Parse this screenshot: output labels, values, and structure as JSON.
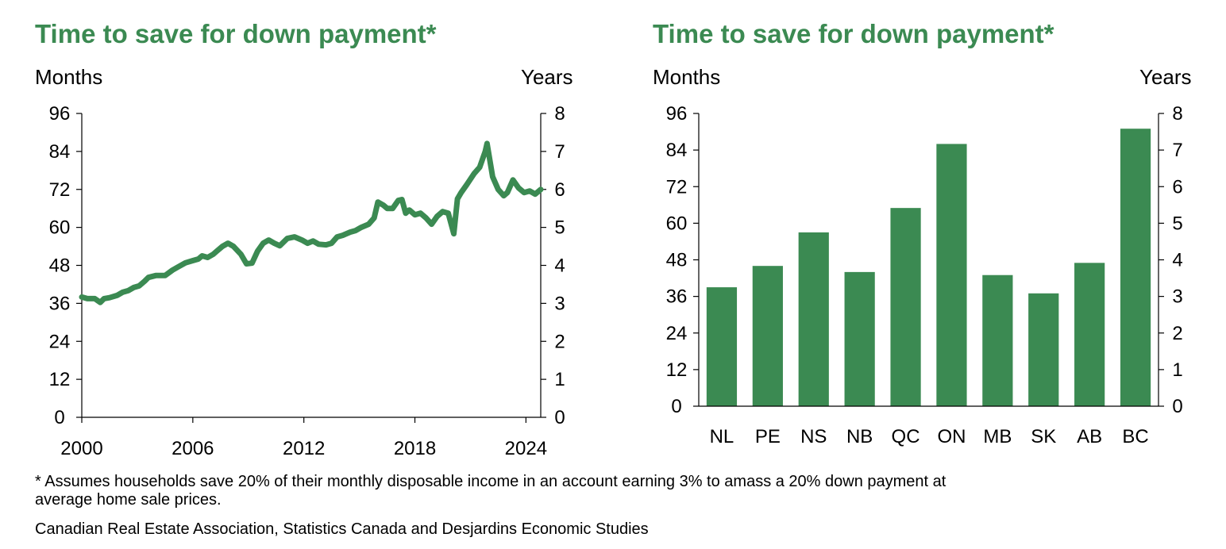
{
  "footnote": "* Assumes households save 20% of their monthly disposable income in an account earning 3% to amass a 20% down payment at",
  "footnote_line2": "average home sale prices.",
  "source": "Canadian Real Estate Association, Statistics Canada and Desjardins Economic Studies",
  "colors": {
    "title": "#3b8a52",
    "series": "#3b8a52",
    "bar": "#3b8a52",
    "axis": "#000000"
  },
  "chart_data": [
    {
      "type": "line",
      "title": "Time to save for down payment*",
      "ylabel": "Months",
      "y2label": "Years",
      "ylim": [
        0,
        96
      ],
      "y2lim": [
        0,
        8
      ],
      "yticks": [
        "96",
        "84",
        "72",
        "60",
        "48",
        "36",
        "24",
        "12",
        "0"
      ],
      "y2ticks": [
        "8",
        "7",
        "6",
        "5",
        "4",
        "3",
        "2",
        "1",
        "0"
      ],
      "xlim": [
        2000,
        2024.8
      ],
      "xticks": [
        "2000",
        "2006",
        "2012",
        "2018",
        "2024"
      ],
      "series": [
        {
          "x": [
            2000.0,
            2000.3,
            2000.7,
            2001.0,
            2001.2,
            2001.5,
            2001.9,
            2002.2,
            2002.5,
            2002.8,
            2003.1,
            2003.4,
            2003.6,
            2004.0,
            2004.5,
            2004.9,
            2005.2,
            2005.6,
            2006.0,
            2006.3,
            2006.5,
            2006.8,
            2007.1,
            2007.3,
            2007.6,
            2007.9,
            2008.2,
            2008.6,
            2008.9,
            2009.2,
            2009.5,
            2009.8,
            2010.1,
            2010.4,
            2010.7,
            2011.1,
            2011.5,
            2011.9,
            2012.2,
            2012.5,
            2012.8,
            2013.2,
            2013.5,
            2013.8,
            2014.1,
            2014.5,
            2014.8,
            2015.1,
            2015.5,
            2015.8,
            2016.0,
            2016.3,
            2016.5,
            2016.8,
            2017.1,
            2017.3,
            2017.5,
            2017.7,
            2018.0,
            2018.3,
            2018.6,
            2018.9,
            2019.2,
            2019.5,
            2019.8,
            2020.1,
            2020.3,
            2020.5,
            2020.8,
            2021.2,
            2021.5,
            2021.8,
            2021.9,
            2022.2,
            2022.5,
            2022.8,
            2023.0,
            2023.3,
            2023.6,
            2023.9,
            2024.2,
            2024.5,
            2024.8
          ],
          "values": [
            38.0,
            37.5,
            37.5,
            36.3,
            37.5,
            37.8,
            38.5,
            39.5,
            40.0,
            41.0,
            41.5,
            43.0,
            44.2,
            44.8,
            44.8,
            46.5,
            47.5,
            48.8,
            49.5,
            50.0,
            51.0,
            50.5,
            51.5,
            52.5,
            54.0,
            55.0,
            54.0,
            51.5,
            48.5,
            48.7,
            52.5,
            55.0,
            56.0,
            55.0,
            54.2,
            56.5,
            57.0,
            56.0,
            55.0,
            55.7,
            54.7,
            54.5,
            55.0,
            57.0,
            57.5,
            58.5,
            59.0,
            60.0,
            61.0,
            63.0,
            68.0,
            67.0,
            66.0,
            66.0,
            68.5,
            68.8,
            64.5,
            65.5,
            64.0,
            64.5,
            63.0,
            61.0,
            63.5,
            65.0,
            64.5,
            58.0,
            69.0,
            71.0,
            73.5,
            77.0,
            79.0,
            84.0,
            86.5,
            76.0,
            72.0,
            70.0,
            71.0,
            75.0,
            72.5,
            71.0,
            71.5,
            70.5,
            72.0
          ]
        }
      ]
    },
    {
      "type": "bar",
      "title": "Time to save for down payment*",
      "ylabel": "Months",
      "y2label": "Years",
      "ylim": [
        0,
        96
      ],
      "y2lim": [
        0,
        8
      ],
      "yticks": [
        "96",
        "84",
        "72",
        "60",
        "48",
        "36",
        "24",
        "12",
        "0"
      ],
      "y2ticks": [
        "8",
        "7",
        "6",
        "5",
        "4",
        "3",
        "2",
        "1",
        "0"
      ],
      "categories": [
        "NL",
        "PE",
        "NS",
        "NB",
        "QC",
        "ON",
        "MB",
        "SK",
        "AB",
        "BC"
      ],
      "values": [
        39,
        46,
        57,
        44,
        65,
        86,
        43,
        37,
        47,
        91
      ]
    }
  ]
}
